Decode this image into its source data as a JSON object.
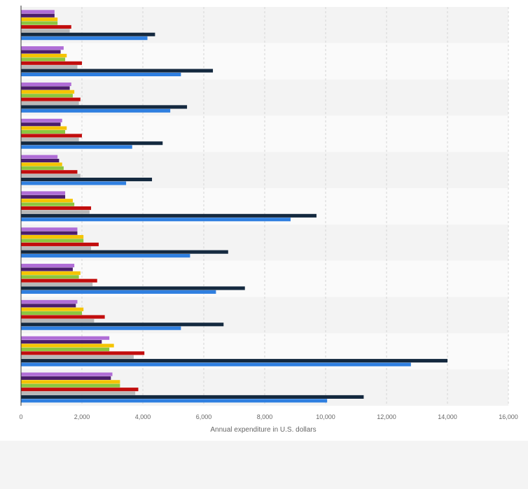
{
  "chart_data": {
    "type": "bar",
    "orientation": "horizontal",
    "xlabel": "Annual expenditure in U.S. dollars",
    "xlim": [
      0,
      16000
    ],
    "x_ticks": [
      0,
      2000,
      4000,
      6000,
      8000,
      10000,
      12000,
      14000,
      16000
    ],
    "x_tick_labels": [
      "0",
      "2,000",
      "4,000",
      "6,000",
      "8,000",
      "10,000",
      "12,000",
      "14,000",
      "16,000"
    ],
    "grid": true,
    "groups": 11,
    "series": [
      {
        "color": "#b06dd6",
        "values": [
          1100,
          1400,
          1650,
          1350,
          1200,
          1450,
          1850,
          1750,
          1850,
          2900,
          3000
        ]
      },
      {
        "color": "#4b1d6b",
        "values": [
          1100,
          1300,
          1600,
          1300,
          1250,
          1450,
          1850,
          1700,
          1800,
          2650,
          2950
        ]
      },
      {
        "color": "#f5c400",
        "values": [
          1200,
          1500,
          1750,
          1500,
          1350,
          1700,
          2050,
          1950,
          2050,
          3050,
          3250
        ]
      },
      {
        "color": "#8cc63f",
        "values": [
          1200,
          1450,
          1700,
          1450,
          1400,
          1750,
          2050,
          1900,
          2000,
          2900,
          3250
        ]
      },
      {
        "color": "#c20d0d",
        "values": [
          1650,
          2000,
          1950,
          2000,
          1850,
          2300,
          2550,
          2500,
          2750,
          4050,
          3850
        ]
      },
      {
        "color": "#b8b8b8",
        "values": [
          1600,
          1850,
          1900,
          1900,
          1950,
          2250,
          2300,
          2350,
          2400,
          3700,
          3750
        ]
      },
      {
        "color": "#14293f",
        "values": [
          4400,
          6300,
          5450,
          4650,
          4300,
          9700,
          6800,
          7350,
          6650,
          14000,
          11250
        ]
      },
      {
        "color": "#2f7fe0",
        "values": [
          4150,
          5250,
          4900,
          3650,
          3450,
          8850,
          5550,
          6400,
          5250,
          12800,
          10050
        ]
      }
    ]
  }
}
